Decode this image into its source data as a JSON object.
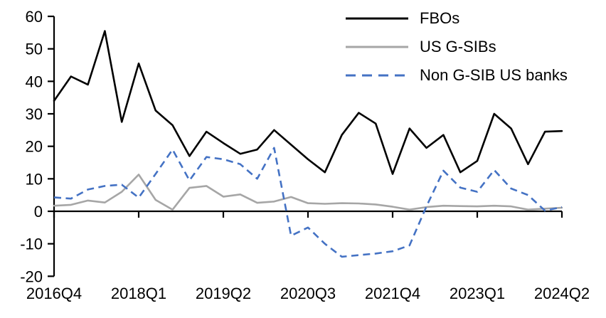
{
  "chart_data": {
    "type": "line",
    "x": [
      "2016Q4",
      "2017Q1",
      "2017Q2",
      "2017Q3",
      "2017Q4",
      "2018Q1",
      "2018Q2",
      "2018Q3",
      "2018Q4",
      "2019Q1",
      "2019Q2",
      "2019Q3",
      "2019Q4",
      "2020Q1",
      "2020Q2",
      "2020Q3",
      "2020Q4",
      "2021Q1",
      "2021Q2",
      "2021Q3",
      "2021Q4",
      "2022Q1",
      "2022Q2",
      "2022Q3",
      "2022Q4",
      "2023Q1",
      "2023Q2",
      "2023Q3",
      "2023Q4",
      "2024Q1",
      "2024Q2"
    ],
    "x_tick_labels": [
      "2016Q4",
      "2018Q1",
      "2019Q2",
      "2020Q3",
      "2021Q4",
      "2023Q1",
      "2024Q2"
    ],
    "x_tick_indices": [
      0,
      5,
      10,
      15,
      20,
      25,
      30
    ],
    "y_ticks": [
      -20,
      -10,
      0,
      10,
      20,
      30,
      40,
      50,
      60
    ],
    "ylim": [
      -20,
      60
    ],
    "grid": false,
    "legend_position": "top-right",
    "axis_color": "#000000",
    "series": [
      {
        "name": "FBOs",
        "color": "#000000",
        "line_style": "solid",
        "values": [
          34,
          41.5,
          39,
          55.5,
          27.5,
          45.5,
          31,
          26.5,
          17,
          24.5,
          21,
          17.7,
          19,
          25,
          20.5,
          16,
          12,
          23.5,
          30.3,
          27,
          11.5,
          25.5,
          19.5,
          23.5,
          12,
          15.5,
          30,
          25.5,
          14.5,
          24.5,
          24.7
        ]
      },
      {
        "name": "US G-SIBs",
        "color": "#A6A6A6",
        "line_style": "solid",
        "values": [
          1.7,
          2,
          3.3,
          2.7,
          6,
          11.3,
          3.5,
          0.5,
          7.2,
          7.8,
          4.5,
          5.2,
          2.6,
          3,
          4.4,
          2.5,
          2.3,
          2.5,
          2.4,
          2.1,
          1.4,
          0.5,
          1.3,
          1.7,
          1.6,
          1.5,
          1.7,
          1.5,
          0.5,
          0.8,
          1.1
        ]
      },
      {
        "name": "Non G-SIB US banks",
        "color": "#4472C4",
        "line_style": "dashed",
        "values": [
          4.3,
          3.9,
          6.7,
          7.8,
          8.2,
          4.2,
          11.5,
          19,
          9.5,
          16.7,
          16,
          14.5,
          10,
          19.5,
          -7.5,
          -5,
          -10,
          -14,
          -13.5,
          -13,
          -12.3,
          -10.5,
          1.5,
          12.5,
          7.3,
          6,
          12.7,
          7,
          5,
          0.2,
          1.3
        ]
      }
    ]
  }
}
